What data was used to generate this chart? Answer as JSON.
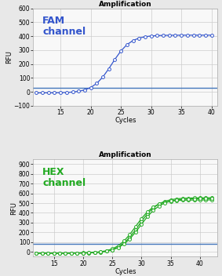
{
  "title": "Amplification",
  "fam_label": "FAM\nchannel",
  "hex_label": "HEX\nchannel",
  "xlabel": "Cycles",
  "ylabel": "RFU",
  "fam_color": "#3355cc",
  "hex_color": "#22aa22",
  "threshold_color_fam": "#4477bb",
  "threshold_color_hex": "#4477bb",
  "fam_ylim": [
    -100,
    600
  ],
  "fam_yticks": [
    -100,
    0,
    100,
    200,
    300,
    400,
    500,
    600
  ],
  "hex_ylim": [
    -50,
    950
  ],
  "hex_yticks": [
    0,
    100,
    200,
    300,
    400,
    500,
    600,
    700,
    800,
    900
  ],
  "xlim_fam": [
    10.5,
    41
  ],
  "xlim_hex": [
    11.5,
    43
  ],
  "fam_xticks": [
    15,
    20,
    25,
    30,
    35,
    40
  ],
  "hex_xticks": [
    15,
    20,
    25,
    30,
    35,
    40
  ],
  "fam_threshold": 30,
  "hex_threshold": 80,
  "background_color": "#e8e8e8",
  "plot_bg": "#f8f8f8",
  "title_fontsize": 6.5,
  "label_fontsize": 9,
  "axis_label_fontsize": 6,
  "tick_fontsize": 5.5
}
